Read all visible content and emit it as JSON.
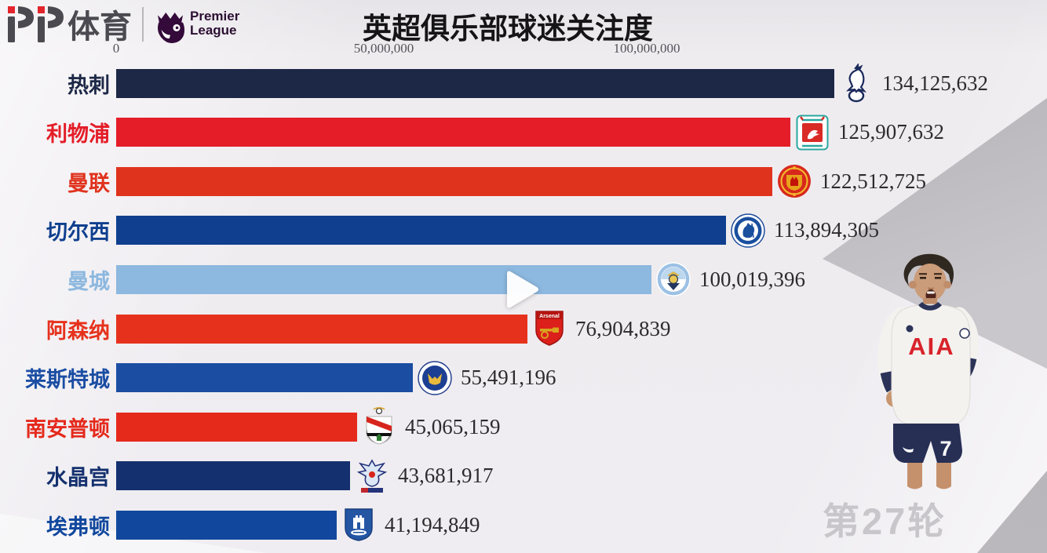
{
  "header": {
    "brand": "体育",
    "brand_prefix": "PP",
    "premier_league_lines": [
      "Premier",
      "League"
    ],
    "title": "英超俱乐部球迷关注度"
  },
  "chart_data": {
    "type": "bar",
    "orientation": "horizontal",
    "title": "英超俱乐部球迷关注度",
    "xlim": [
      0,
      140000000
    ],
    "x_ticks": [
      0,
      50000000,
      100000000
    ],
    "x_tick_labels": [
      "0",
      "50,000,000",
      "100,000,000"
    ],
    "grid": false,
    "categories": [
      "热刺",
      "利物浦",
      "曼联",
      "切尔西",
      "曼城",
      "阿森纳",
      "莱斯特城",
      "南安普顿",
      "水晶宫",
      "埃弗顿"
    ],
    "values": [
      134125632,
      125907632,
      122512725,
      113894305,
      100019396,
      76904839,
      55491196,
      45065159,
      43681917,
      41194849
    ],
    "series": [
      {
        "label": "热刺",
        "value": 134125632,
        "value_label": "134,125,632",
        "color": "#1d2847",
        "badge": "tottenham-badge"
      },
      {
        "label": "利物浦",
        "value": 125907632,
        "value_label": "125,907,632",
        "color": "#e41d28",
        "badge": "liverpool-badge"
      },
      {
        "label": "曼联",
        "value": 122512725,
        "value_label": "122,512,725",
        "color": "#e0331d",
        "badge": "man-united-badge"
      },
      {
        "label": "切尔西",
        "value": 113894305,
        "value_label": "113,894,305",
        "color": "#0f3f8e",
        "badge": "chelsea-badge"
      },
      {
        "label": "曼城",
        "value": 100019396,
        "value_label": "100,019,396",
        "color": "#8db8df",
        "badge": "man-city-badge"
      },
      {
        "label": "阿森纳",
        "value": 76904839,
        "value_label": "76,904,839",
        "color": "#e6321c",
        "badge": "arsenal-badge"
      },
      {
        "label": "莱斯特城",
        "value": 55491196,
        "value_label": "55,491,196",
        "color": "#1b4da3",
        "badge": "leicester-badge"
      },
      {
        "label": "南安普顿",
        "value": 45065159,
        "value_label": "45,065,159",
        "color": "#e52a1c",
        "badge": "southampton-badge"
      },
      {
        "label": "水晶宫",
        "value": 43681917,
        "value_label": "43,681,917",
        "color": "#14306e",
        "badge": "crystal-palace-badge"
      },
      {
        "label": "埃弗顿",
        "value": 41194849,
        "value_label": "41,194,849",
        "color": "#11489e",
        "badge": "everton-badge"
      }
    ]
  },
  "overlay": {
    "round_label": "第27轮"
  },
  "player": {
    "shirt_sponsor": "AIA",
    "shorts_number": "7"
  }
}
